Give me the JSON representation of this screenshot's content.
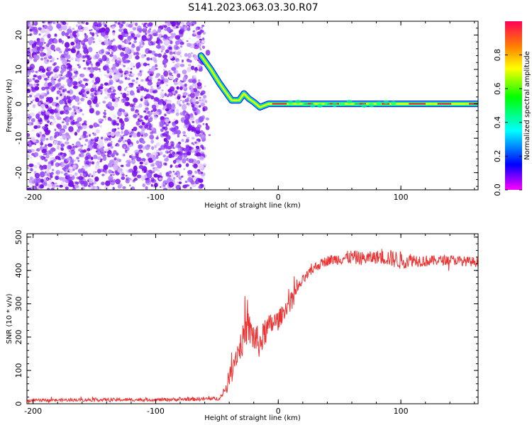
{
  "title": "S141.2023.063.03.30.R07",
  "chart_data": [
    {
      "type": "heatmap",
      "xlabel": "Height of straight line (km)",
      "ylabel": "Frequency (Hz)",
      "xlim": [
        -205,
        163
      ],
      "ylim": [
        -25,
        24
      ],
      "x_ticks": [
        -200,
        -100,
        0,
        100
      ],
      "x_tick_labels": [
        "-200",
        "-100",
        "0",
        "100"
      ],
      "y_ticks": [
        -20,
        -10,
        0,
        10,
        20
      ],
      "y_tick_labels": [
        "-20",
        "-10",
        "0",
        "10",
        "20"
      ],
      "noise_region_x": [
        -205,
        -60
      ],
      "ridge": [
        {
          "x": -63,
          "y": 14
        },
        {
          "x": -55,
          "y": 10
        },
        {
          "x": -48,
          "y": 6
        },
        {
          "x": -42,
          "y": 3
        },
        {
          "x": -38,
          "y": 1
        },
        {
          "x": -32,
          "y": 1
        },
        {
          "x": -28,
          "y": 3
        },
        {
          "x": -24,
          "y": 1.5
        },
        {
          "x": -20,
          "y": 0.5
        },
        {
          "x": -15,
          "y": -1
        },
        {
          "x": -8,
          "y": 0
        },
        {
          "x": 0,
          "y": 0
        },
        {
          "x": 50,
          "y": 0
        },
        {
          "x": 100,
          "y": 0
        },
        {
          "x": 163,
          "y": 0
        }
      ],
      "colorbar": {
        "label": "Normalized spectral amplitude",
        "ticks": [
          0.0,
          0.2,
          0.4,
          0.6,
          0.8
        ],
        "tick_labels": [
          "0.0",
          "0.2",
          "0.4",
          "0.6",
          "0.8"
        ],
        "range": [
          0,
          1
        ],
        "colors": [
          "#ff00ff",
          "#0000ff",
          "#00ffff",
          "#00ff00",
          "#ffff00",
          "#ff8000",
          "#ff0033"
        ]
      }
    },
    {
      "type": "line",
      "xlabel": "Height of straight line (km)",
      "ylabel": "SNR (10 * v/v)",
      "xlim": [
        -205,
        163
      ],
      "ylim": [
        0,
        510
      ],
      "x_ticks": [
        -200,
        -100,
        0,
        100
      ],
      "x_tick_labels": [
        "-200",
        "-100",
        "0",
        "100"
      ],
      "y_ticks": [
        0,
        100,
        200,
        300,
        400,
        500
      ],
      "y_tick_labels": [
        "0",
        "100",
        "200",
        "300",
        "400",
        "500"
      ],
      "series": [
        {
          "name": "SNR",
          "color": "#ee3333",
          "x": [
            -205,
            -150,
            -100,
            -50,
            -45,
            -40,
            -35,
            -30,
            -25,
            -20,
            -15,
            -10,
            -5,
            0,
            5,
            10,
            15,
            20,
            25,
            30,
            35,
            40,
            50,
            60,
            70,
            80,
            90,
            100,
            110,
            120,
            130,
            140,
            150,
            163
          ],
          "y": [
            10,
            12,
            12,
            15,
            25,
            80,
            140,
            180,
            230,
            200,
            180,
            220,
            240,
            250,
            280,
            310,
            340,
            370,
            390,
            410,
            420,
            430,
            435,
            440,
            435,
            440,
            438,
            430,
            432,
            428,
            430,
            432,
            428,
            425
          ],
          "noise": [
            4,
            5,
            5,
            6,
            10,
            25,
            35,
            45,
            50,
            50,
            45,
            40,
            35,
            30,
            25,
            22,
            18,
            15,
            15,
            15,
            15,
            15,
            18,
            22,
            20,
            20,
            25,
            28,
            20,
            18,
            15,
            15,
            15,
            15
          ]
        }
      ]
    }
  ]
}
